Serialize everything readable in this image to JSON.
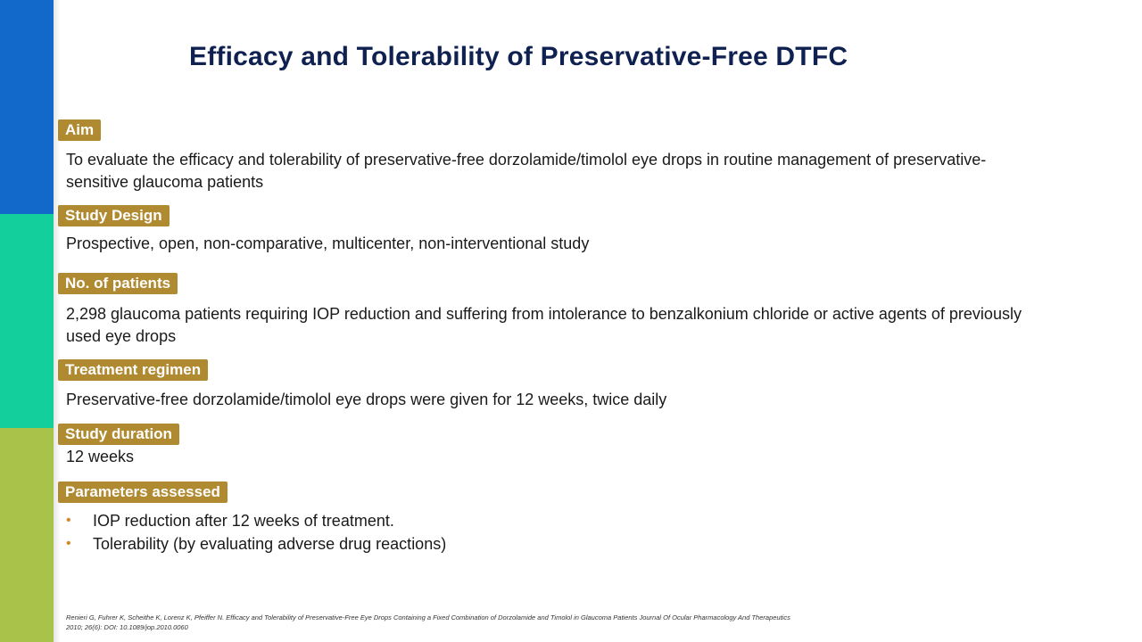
{
  "title": "Efficacy and Tolerability of Preservative-Free DTFC",
  "sections": {
    "aim": {
      "label": "Aim",
      "text": "To evaluate the efficacy and tolerability of preservative-free dorzolamide/timolol eye drops in routine management of preservative-sensitive glaucoma patients"
    },
    "study_design": {
      "label": "Study Design",
      "text": "Prospective, open, non-comparative, multicenter, non-interventional study"
    },
    "patients": {
      "label": "No. of patients",
      "text": "2,298 glaucoma patients requiring IOP reduction and suffering from intolerance to benzalkonium chloride or active agents of previously used eye drops"
    },
    "treatment": {
      "label": "Treatment regimen",
      "text": "Preservative-free dorzolamide/timolol eye drops were given for 12 weeks, twice daily"
    },
    "duration": {
      "label": "Study duration",
      "text": "12 weeks"
    },
    "parameters": {
      "label": "Parameters assessed",
      "items": [
        "IOP reduction after 12 weeks of treatment.",
        "Tolerability (by evaluating adverse drug reactions)"
      ]
    }
  },
  "reference": "Renieri G, Fuhrer K, Scheithe K, Lorenz K, Pfeiffer N. Efficacy and Tolerability of Preservative-Free Eye Drops Containing a Fixed Combination of Dorzolamide and Timolol in Glaucoma Patients Journal Of Ocular Pharmacology And Therapeutics 2010; 26(6): DOI: 10.1089/jop.2010.0060",
  "colors": {
    "strip_blue": "#1369c9",
    "strip_teal": "#12cf9b",
    "strip_green": "#a8c24a",
    "label_bg": "#b08a30",
    "title": "#0f2150",
    "bullet": "#d4882a"
  }
}
